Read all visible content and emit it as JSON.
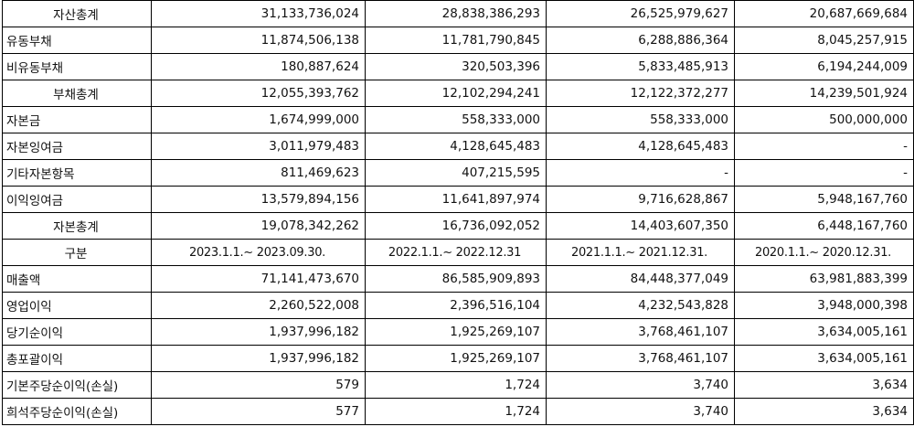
{
  "rows": [
    {
      "label": "자산총계",
      "centered": true,
      "values": [
        "31,133,736,024",
        "28,838,386,293",
        "26,525,979,627",
        "20,687,669,684"
      ]
    },
    {
      "label": "유동부채",
      "centered": false,
      "values": [
        "11,874,506,138",
        "11,781,790,845",
        "6,288,886,364",
        "8,045,257,915"
      ]
    },
    {
      "label": "비유동부채",
      "centered": false,
      "values": [
        "180,887,624",
        "320,503,396",
        "5,833,485,913",
        "6,194,244,009"
      ]
    },
    {
      "label": "부채총계",
      "centered": true,
      "values": [
        "12,055,393,762",
        "12,102,294,241",
        "12,122,372,277",
        "14,239,501,924"
      ]
    },
    {
      "label": "자본금",
      "centered": false,
      "values": [
        "1,674,999,000",
        "558,333,000",
        "558,333,000",
        "500,000,000"
      ]
    },
    {
      "label": "자본잉여금",
      "centered": false,
      "values": [
        "3,011,979,483",
        "4,128,645,483",
        "4,128,645,483",
        "-"
      ]
    },
    {
      "label": "기타자본항목",
      "centered": false,
      "values": [
        "811,469,623",
        "407,215,595",
        "-",
        "-"
      ]
    },
    {
      "label": "이익잉여금",
      "centered": false,
      "values": [
        "13,579,894,156",
        "11,641,897,974",
        "9,716,628,867",
        "5,948,167,760"
      ]
    },
    {
      "label": "자본총계",
      "centered": true,
      "values": [
        "19,078,342,262",
        "16,736,092,052",
        "14,403,607,350",
        "6,448,167,760"
      ]
    },
    {
      "label": "구분",
      "centered": true,
      "header": true,
      "values": [
        "2023.1.1.~ 2023.09.30.",
        "2022.1.1.~ 2022.12.31",
        "2021.1.1.~ 2021.12.31.",
        "2020.1.1.~ 2020.12.31."
      ]
    },
    {
      "label": "매출액",
      "centered": false,
      "values": [
        "71,141,473,670",
        "86,585,909,893",
        "84,448,377,049",
        "63,981,883,399"
      ]
    },
    {
      "label": "영업이익",
      "centered": false,
      "values": [
        "2,260,522,008",
        "2,396,516,104",
        "4,232,543,828",
        "3,948,000,398"
      ]
    },
    {
      "label": "당기순이익",
      "centered": false,
      "values": [
        "1,937,996,182",
        "1,925,269,107",
        "3,768,461,107",
        "3,634,005,161"
      ]
    },
    {
      "label": "총포괄이익",
      "centered": false,
      "values": [
        "1,937,996,182",
        "1,925,269,107",
        "3,768,461,107",
        "3,634,005,161"
      ]
    },
    {
      "label": "기본주당순이익(손실)",
      "centered": false,
      "values": [
        "579",
        "1,724",
        "3,740",
        "3,634"
      ]
    },
    {
      "label": "희석주당순이익(손실)",
      "centered": false,
      "values": [
        "577",
        "1,724",
        "3,740",
        "3,634"
      ]
    }
  ]
}
